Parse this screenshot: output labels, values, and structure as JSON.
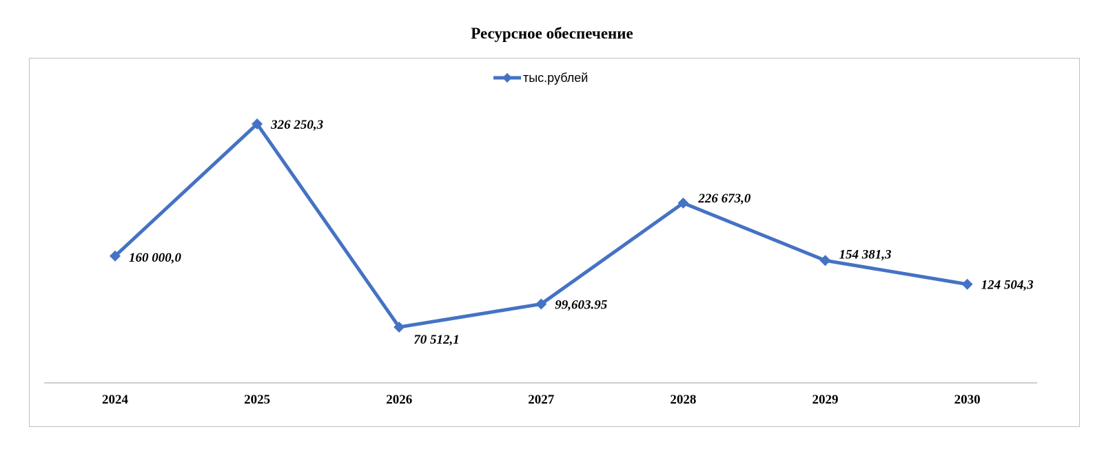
{
  "chart_data": {
    "type": "line",
    "title": "Ресурсное обеспечение",
    "categories": [
      "2024",
      "2025",
      "2026",
      "2027",
      "2028",
      "2029",
      "2030"
    ],
    "series": [
      {
        "name": "тыс.рублей",
        "color": "#4472c4",
        "marker": "diamond",
        "values": [
          160000.0,
          326250.3,
          70512.1,
          99603.95,
          226673.0,
          154381.3,
          124504.3
        ],
        "data_labels": [
          "160 000,0",
          "326 250,3",
          "70 512,1",
          "99,603.95",
          "226 673,0",
          "154 381,3",
          "124 504,3"
        ]
      }
    ],
    "legend_position": "top-center",
    "grid": false,
    "y_axis_visible": false
  }
}
